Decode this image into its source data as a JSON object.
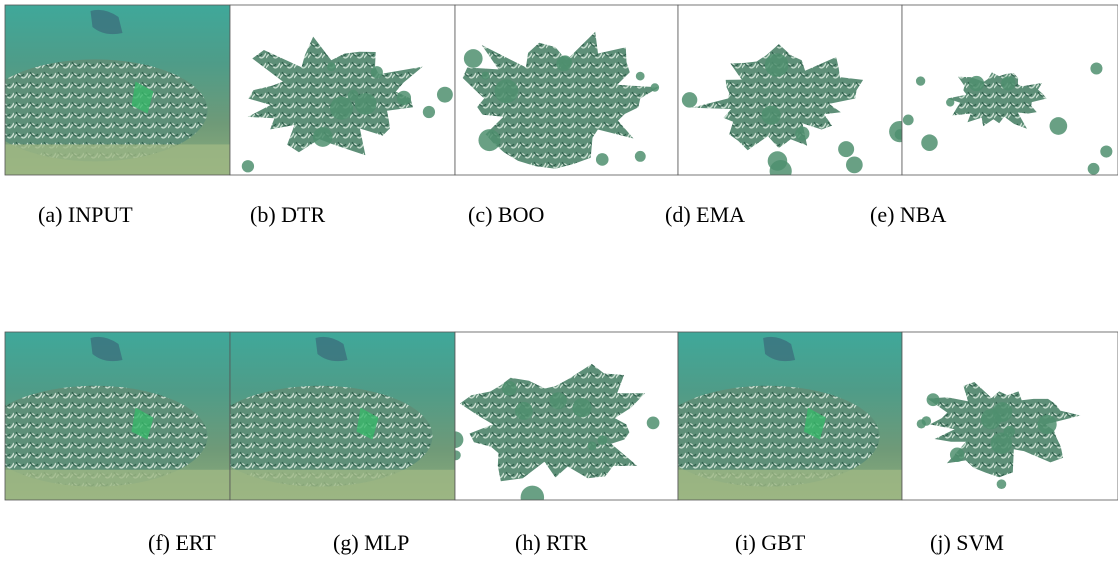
{
  "panels": [
    {
      "caption": "(a) INPUT"
    },
    {
      "caption": "(b) DTR"
    },
    {
      "caption": "(c) BOO"
    },
    {
      "caption": "(d) EMA"
    },
    {
      "caption": "(e) NBA"
    },
    {
      "caption": "(f) ERT"
    },
    {
      "caption": "(g) MLP"
    },
    {
      "caption": "(h) RTR"
    },
    {
      "caption": "(i) GBT"
    },
    {
      "caption": "(j) SVM"
    }
  ]
}
